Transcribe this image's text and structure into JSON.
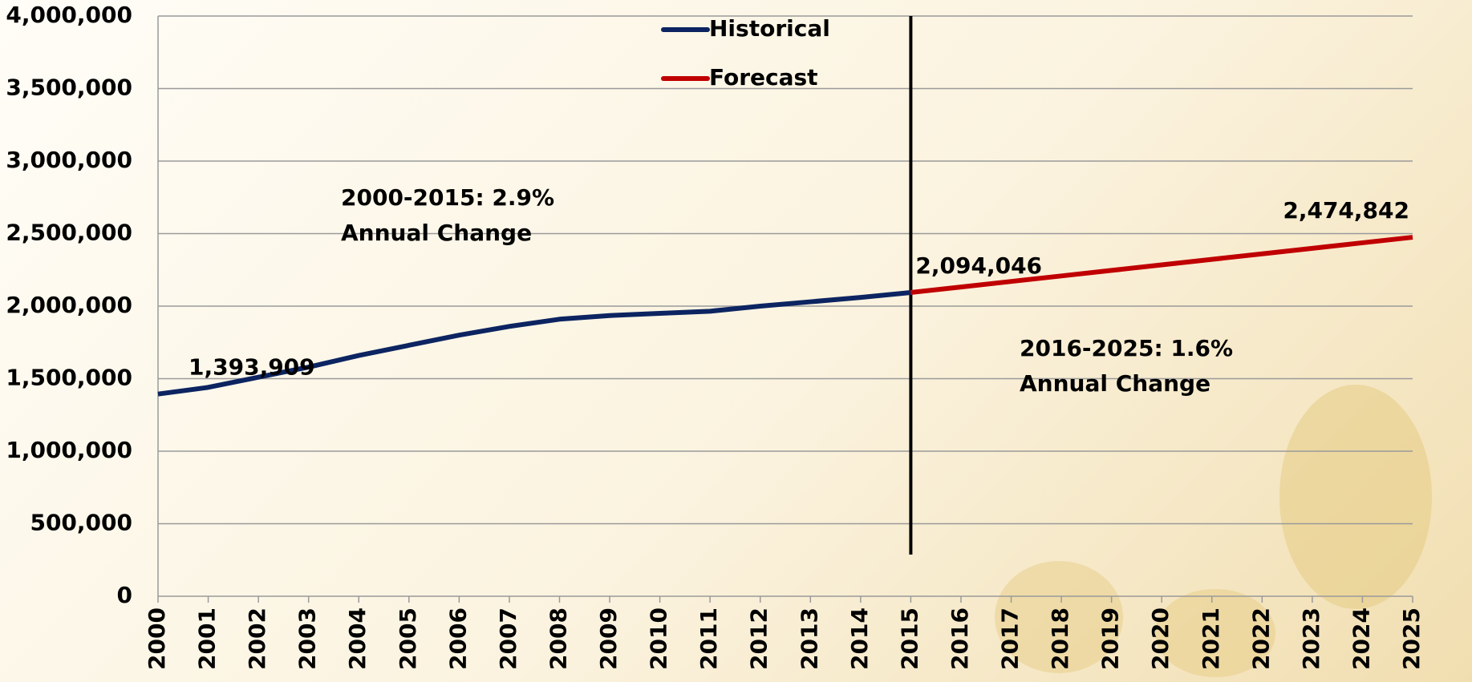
{
  "chart_data": {
    "type": "line",
    "categories": [
      "2000",
      "2001",
      "2002",
      "2003",
      "2004",
      "2005",
      "2006",
      "2007",
      "2008",
      "2009",
      "2010",
      "2011",
      "2012",
      "2013",
      "2014",
      "2015",
      "2016",
      "2017",
      "2018",
      "2019",
      "2020",
      "2021",
      "2022",
      "2023",
      "2024",
      "2025"
    ],
    "series": [
      {
        "name": "Historical",
        "color": "#0c2461",
        "values": [
          1393909,
          1440000,
          1510000,
          1580000,
          1660000,
          1730000,
          1800000,
          1860000,
          1910000,
          1935000,
          1950000,
          1965000,
          2000000,
          2030000,
          2060000,
          2094046,
          null,
          null,
          null,
          null,
          null,
          null,
          null,
          null,
          null,
          null
        ],
        "value_labels": [
          "1,393,909",
          null,
          null,
          null,
          null,
          null,
          null,
          null,
          null,
          null,
          null,
          null,
          null,
          null,
          null,
          "2,094,046",
          null,
          null,
          null,
          null,
          null,
          null,
          null,
          null,
          null,
          null
        ]
      },
      {
        "name": "Forecast",
        "color": "#c00000",
        "values": [
          null,
          null,
          null,
          null,
          null,
          null,
          null,
          null,
          null,
          null,
          null,
          null,
          null,
          null,
          null,
          2094046,
          2132126,
          2170206,
          2208286,
          2246365,
          2284444,
          2322524,
          2360604,
          2398684,
          2436763,
          2474842
        ],
        "value_labels": [
          null,
          null,
          null,
          null,
          null,
          null,
          null,
          null,
          null,
          null,
          null,
          null,
          null,
          null,
          null,
          null,
          null,
          null,
          null,
          null,
          null,
          null,
          null,
          null,
          null,
          "2,474,842"
        ]
      }
    ],
    "ylim": [
      0,
      4000000
    ],
    "yticks": [
      0,
      {
        "value": 500000,
        "label": "500,000"
      },
      {
        "value": 1000000,
        "label": "1,000,000"
      },
      {
        "value": 1500000,
        "label": "1,500,000"
      },
      {
        "value": 2000000,
        "label": "2,000,000"
      },
      {
        "value": 2500000,
        "label": "2,500,000"
      },
      {
        "value": 3000000,
        "label": "3,000,000"
      },
      {
        "value": 3500000,
        "label": "3,500,000"
      },
      {
        "value": 4000000,
        "label": "4,000,000"
      }
    ],
    "grid": true,
    "annotations": [
      {
        "lines": [
          "2000-2015: 2.9%",
          "Annual Change"
        ]
      },
      {
        "lines": [
          "2016-2025: 1.6%",
          "Annual Change"
        ]
      }
    ]
  }
}
